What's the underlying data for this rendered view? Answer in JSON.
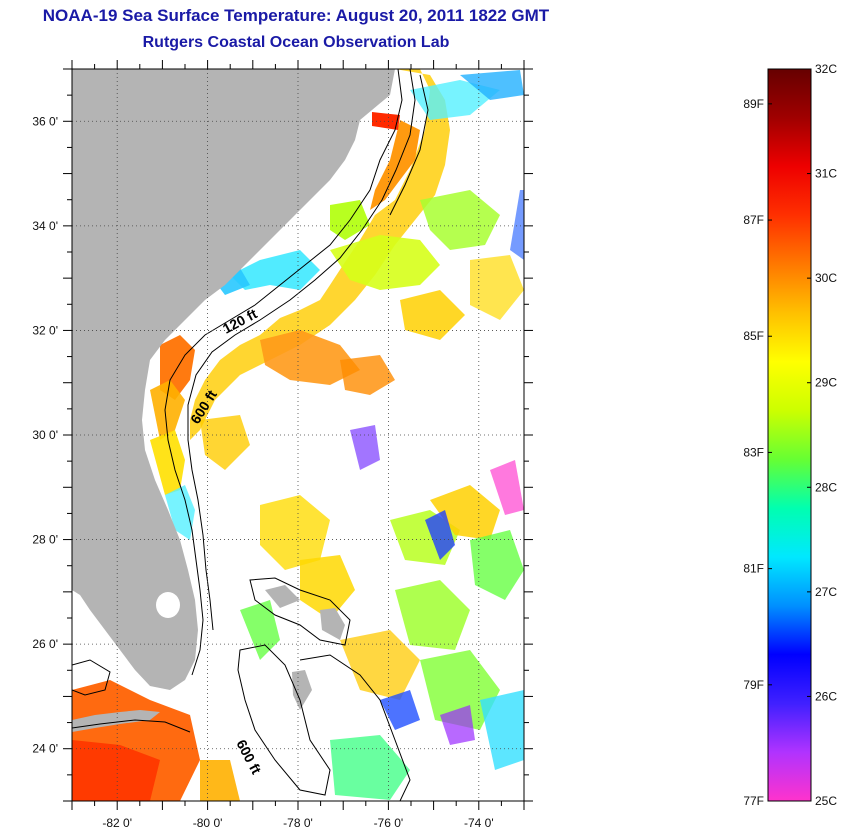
{
  "title": {
    "line1": "NOAA-19 Sea Surface Temperature:  August 20, 2011 1822 GMT",
    "line2": "Rutgers Coastal Ocean Observation Lab"
  },
  "map": {
    "lon_range": [
      -83,
      -73
    ],
    "lat_range": [
      23,
      37
    ],
    "lat_ticks": [
      {
        "value": 36,
        "label": "36 0'"
      },
      {
        "value": 34,
        "label": "34 0'"
      },
      {
        "value": 32,
        "label": "32 0'"
      },
      {
        "value": 30,
        "label": "30 0'"
      },
      {
        "value": 28,
        "label": "28 0'"
      },
      {
        "value": 26,
        "label": "26 0'"
      },
      {
        "value": 24,
        "label": "24 0'"
      }
    ],
    "lon_ticks": [
      {
        "value": -82,
        "label": "-82 0'"
      },
      {
        "value": -80,
        "label": "-80 0'"
      },
      {
        "value": -78,
        "label": "-78 0'"
      },
      {
        "value": -76,
        "label": "-76 0'"
      },
      {
        "value": -74,
        "label": "-74 0'"
      }
    ],
    "depth_labels": {
      "a": "120 ft",
      "b": "600 ft",
      "c": "600 ft"
    },
    "colors": {
      "land": "#b4b4b4",
      "cloud": "#ffffff",
      "grid": "#444444"
    }
  },
  "colorbar": {
    "celsius": [
      {
        "value": 32,
        "label": "32C"
      },
      {
        "value": 31,
        "label": "31C"
      },
      {
        "value": 30,
        "label": "30C"
      },
      {
        "value": 29,
        "label": "29C"
      },
      {
        "value": 28,
        "label": "28C"
      },
      {
        "value": 27,
        "label": "27C"
      },
      {
        "value": 26,
        "label": "26C"
      },
      {
        "value": 25,
        "label": "25C"
      }
    ],
    "fahrenheit": [
      {
        "value": 89,
        "label": "89F"
      },
      {
        "value": 87,
        "label": "87F"
      },
      {
        "value": 85,
        "label": "85F"
      },
      {
        "value": 83,
        "label": "83F"
      },
      {
        "value": 81,
        "label": "81F"
      },
      {
        "value": 79,
        "label": "79F"
      },
      {
        "value": 77,
        "label": "77F"
      }
    ],
    "range_c": [
      25,
      32
    ],
    "stops": [
      "#ff33cc",
      "#b033ff",
      "#4020ff",
      "#0000ff",
      "#0090ff",
      "#00e8ff",
      "#00ffb0",
      "#66ff33",
      "#ccff00",
      "#ffff00",
      "#ffc000",
      "#ff7800",
      "#ff3000",
      "#ee0000",
      "#a00000",
      "#660000"
    ]
  }
}
